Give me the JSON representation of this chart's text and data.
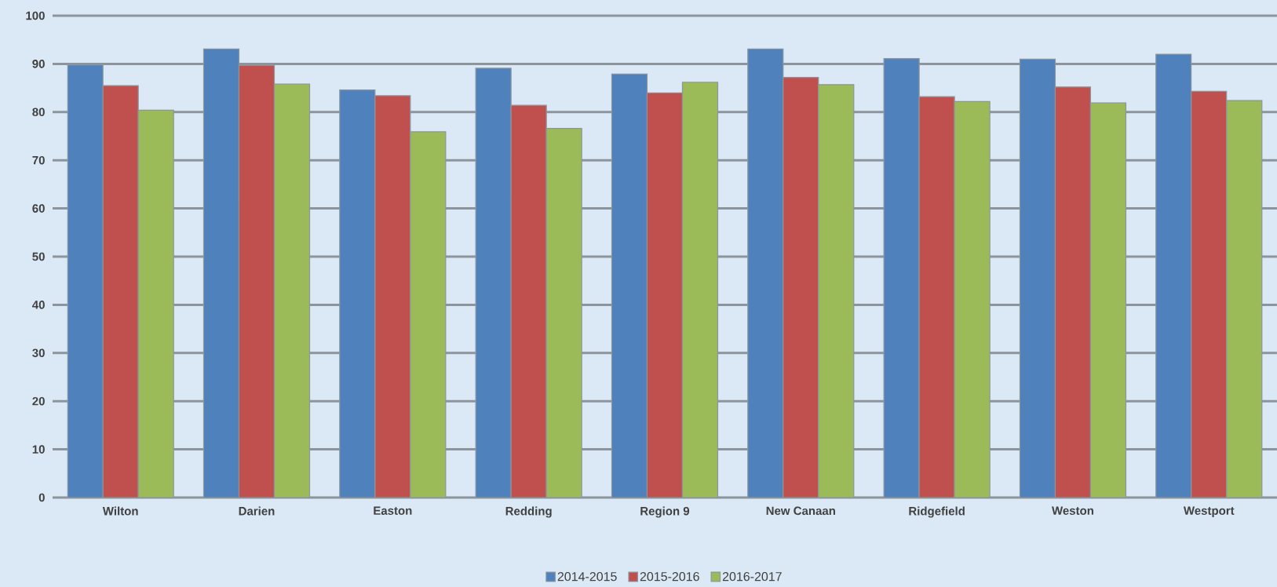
{
  "chart_data": {
    "type": "bar",
    "categories": [
      "Wilton",
      "Darien",
      "Easton",
      "Redding",
      "Region 9",
      "New Canaan",
      "Ridgefield",
      "Weston",
      "Westport"
    ],
    "series": [
      {
        "name": "2014-2015",
        "color": "#4f81bd",
        "values": [
          89.8,
          93.1,
          84.6,
          89.1,
          87.9,
          93.1,
          91.1,
          91.0,
          92.0
        ]
      },
      {
        "name": "2015-2016",
        "color": "#c0504d",
        "values": [
          85.5,
          89.7,
          83.4,
          81.4,
          84.0,
          87.2,
          83.2,
          85.2,
          84.3
        ]
      },
      {
        "name": "2016-2017",
        "color": "#9bbb59",
        "values": [
          80.4,
          85.8,
          75.9,
          76.6,
          86.2,
          85.7,
          82.2,
          81.9,
          82.4
        ]
      }
    ],
    "ylim": [
      0,
      100
    ],
    "yticks": [
      0,
      10,
      20,
      30,
      40,
      50,
      60,
      70,
      80,
      90,
      100
    ],
    "grid": "y",
    "legend": "bottom"
  }
}
